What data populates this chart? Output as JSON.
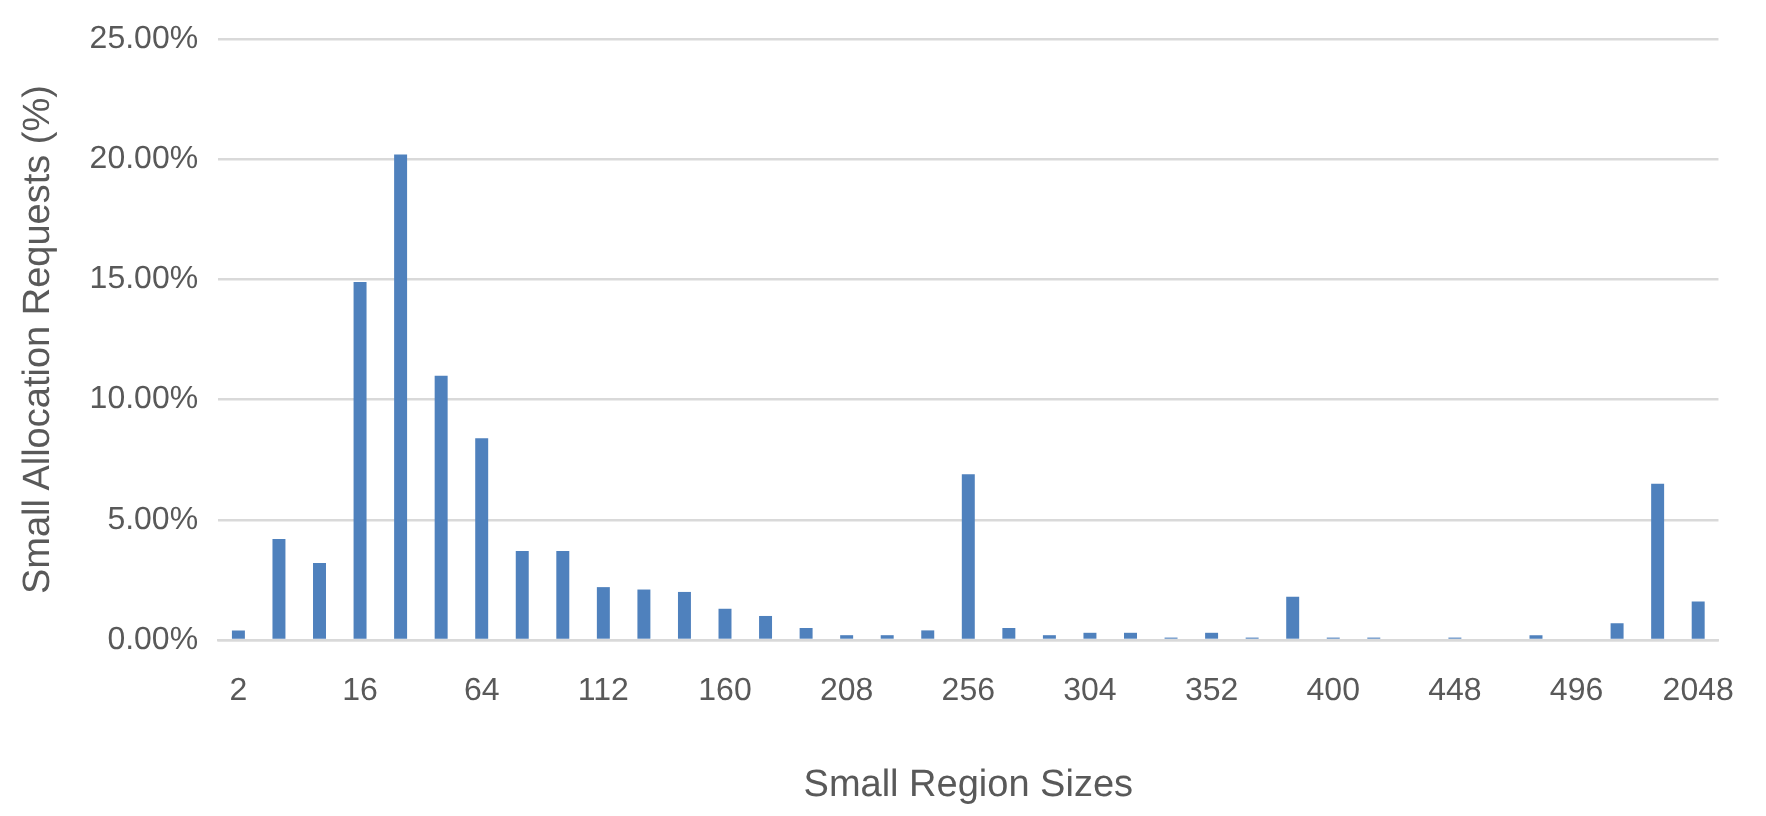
{
  "chart_data": {
    "type": "bar",
    "xlabel": "Small Region Sizes",
    "ylabel": "Small Allocation Requests (%)",
    "categories": [
      "2",
      null,
      null,
      "16",
      null,
      null,
      "64",
      null,
      null,
      "112",
      null,
      null,
      "160",
      null,
      null,
      "208",
      null,
      null,
      "256",
      null,
      null,
      "304",
      null,
      null,
      "352",
      null,
      null,
      "400",
      null,
      null,
      "448",
      null,
      null,
      "496",
      null,
      null,
      "2048"
    ],
    "values": [
      0.4,
      4.2,
      3.2,
      14.9,
      20.2,
      11.0,
      8.4,
      3.7,
      3.7,
      2.2,
      2.1,
      2.0,
      1.3,
      1.0,
      0.5,
      0.2,
      0.2,
      0.4,
      6.9,
      0.5,
      0.2,
      0.3,
      0.3,
      0.1,
      0.3,
      0.1,
      1.8,
      0.1,
      0.1,
      null,
      0.1,
      0,
      0.2,
      null,
      0.7,
      6.5,
      1.6
    ],
    "color": "#4f81bd",
    "ylim": [
      0,
      25
    ],
    "yticks": [
      {
        "value": 0,
        "label": "0.00%"
      },
      {
        "value": 5,
        "label": "5.00%"
      },
      {
        "value": 10,
        "label": "10.00%"
      },
      {
        "value": 15,
        "label": "15.00%"
      },
      {
        "value": 20,
        "label": "20.00%"
      },
      {
        "value": 25,
        "label": "25.00%"
      }
    ],
    "grid": "y",
    "legend": false
  }
}
